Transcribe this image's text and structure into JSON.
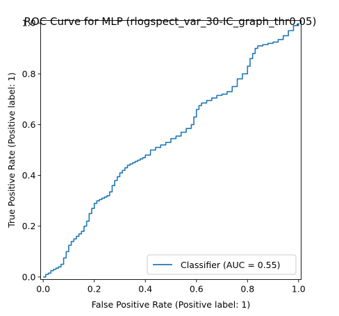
{
  "chart_data": {
    "type": "line",
    "title": "ROC Curve for MLP (rlogspect_var_30-IC_graph_thr0.05)",
    "xlabel": "False Positive Rate (Positive label: 1)",
    "ylabel": "True Positive Rate (Positive label: 1)",
    "xlim": [
      -0.01,
      1.01
    ],
    "ylim": [
      -0.01,
      1.01
    ],
    "xticks": [
      "0.0",
      "0.2",
      "0.4",
      "0.6",
      "0.8",
      "1.0"
    ],
    "yticks": [
      "0.0",
      "0.2",
      "0.4",
      "0.6",
      "0.8",
      "1.0"
    ],
    "grid": false,
    "legend": {
      "placement": "lower-right",
      "entry": "Classifier (AUC = 0.55)"
    },
    "series": [
      {
        "name": "Classifier (AUC = 0.55)",
        "color": "#1f77b4",
        "x": [
          0.0,
          0.01,
          0.02,
          0.03,
          0.04,
          0.05,
          0.06,
          0.07,
          0.08,
          0.09,
          0.1,
          0.11,
          0.12,
          0.13,
          0.14,
          0.15,
          0.16,
          0.17,
          0.18,
          0.19,
          0.2,
          0.21,
          0.22,
          0.23,
          0.24,
          0.25,
          0.26,
          0.27,
          0.28,
          0.29,
          0.3,
          0.31,
          0.32,
          0.33,
          0.34,
          0.35,
          0.36,
          0.37,
          0.38,
          0.39,
          0.4,
          0.42,
          0.44,
          0.46,
          0.48,
          0.5,
          0.52,
          0.54,
          0.56,
          0.58,
          0.59,
          0.6,
          0.61,
          0.62,
          0.64,
          0.66,
          0.68,
          0.7,
          0.72,
          0.74,
          0.76,
          0.78,
          0.8,
          0.81,
          0.82,
          0.83,
          0.84,
          0.86,
          0.88,
          0.9,
          0.92,
          0.94,
          0.96,
          0.98,
          1.0
        ],
        "y": [
          0.0,
          0.01,
          0.015,
          0.025,
          0.03,
          0.035,
          0.04,
          0.05,
          0.075,
          0.1,
          0.125,
          0.14,
          0.15,
          0.16,
          0.17,
          0.18,
          0.2,
          0.22,
          0.25,
          0.27,
          0.29,
          0.3,
          0.305,
          0.31,
          0.315,
          0.32,
          0.335,
          0.36,
          0.38,
          0.395,
          0.41,
          0.42,
          0.43,
          0.44,
          0.445,
          0.45,
          0.455,
          0.46,
          0.465,
          0.47,
          0.48,
          0.5,
          0.51,
          0.52,
          0.53,
          0.545,
          0.555,
          0.57,
          0.585,
          0.6,
          0.63,
          0.66,
          0.675,
          0.685,
          0.695,
          0.705,
          0.715,
          0.72,
          0.73,
          0.75,
          0.78,
          0.8,
          0.83,
          0.86,
          0.88,
          0.9,
          0.91,
          0.915,
          0.92,
          0.925,
          0.935,
          0.95,
          0.97,
          0.99,
          1.0
        ]
      }
    ]
  }
}
